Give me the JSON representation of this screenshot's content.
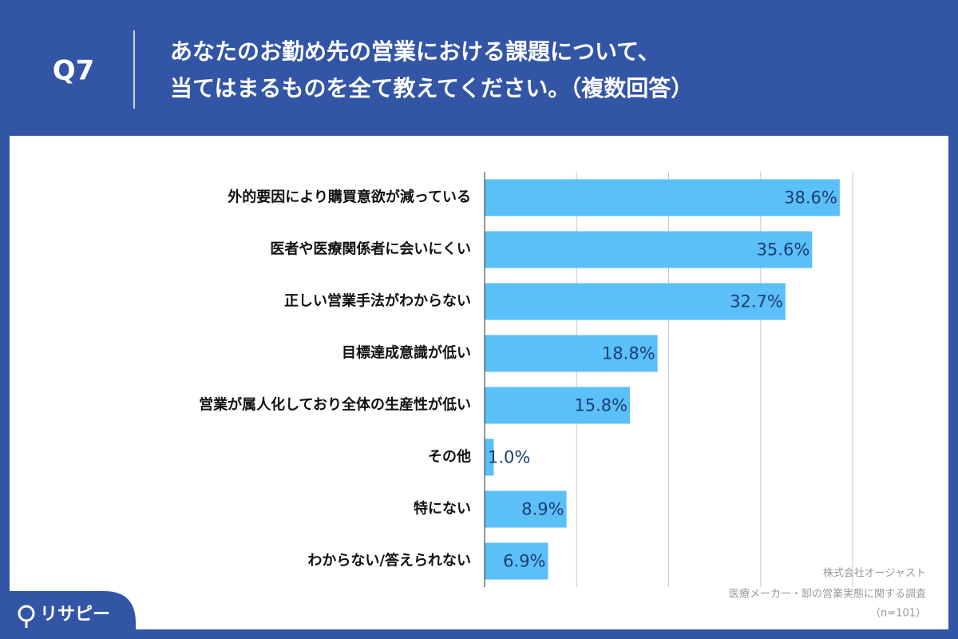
{
  "header": {
    "badge": "Q7",
    "question": [
      "あなたのお勤め先の営業における課題について、",
      "当てはまるものを全て教えてください。（複数回答）"
    ]
  },
  "chart_data": {
    "type": "bar",
    "orientation": "horizontal",
    "categories": [
      "外的要因により購買意欲が減っている",
      "医者や医療関係者に会いにくい",
      "正しい営業手法がわからない",
      "目標達成意識が低い",
      "営業が属人化しており全体の生産性が低い",
      "その他",
      "特にない",
      "わからない/答えられない"
    ],
    "values": [
      38.6,
      35.6,
      32.7,
      18.8,
      15.8,
      1.0,
      8.9,
      6.9
    ],
    "value_labels": [
      "38.6%",
      "35.6%",
      "32.7%",
      "18.8%",
      "15.8%",
      "1.0%",
      "8.9%",
      "6.9%"
    ],
    "color": "#5bbff8",
    "xlim": [
      0,
      40
    ],
    "xticks": [
      0,
      10,
      20,
      30,
      40
    ],
    "grid": true
  },
  "footer": {
    "source": [
      "株式会社オージャスト",
      "医療メーカー・卸の営業実態に関する調査",
      "（n=101）"
    ],
    "logo": "リサピー"
  }
}
